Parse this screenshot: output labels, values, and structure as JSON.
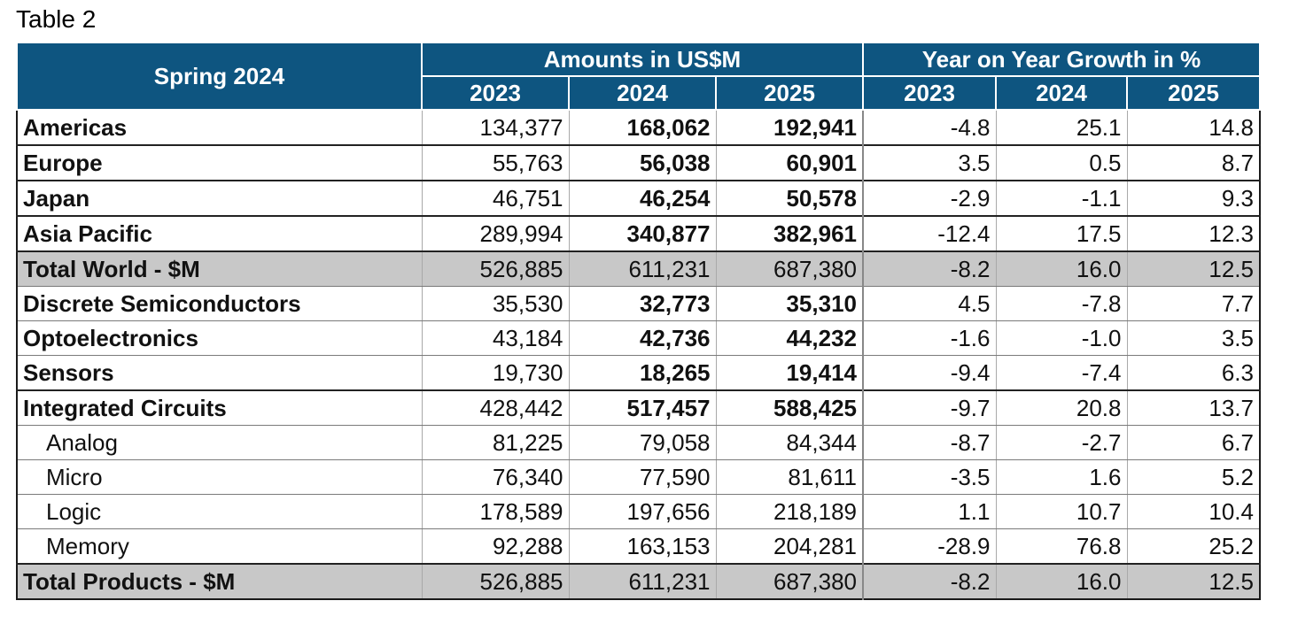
{
  "caption": "Table 2",
  "header": {
    "corner": "Spring 2024",
    "amounts_group": "Amounts in US$M",
    "growth_group": "Year on Year Growth in %",
    "years": [
      "2023",
      "2024",
      "2025"
    ]
  },
  "rows": [
    {
      "label": "Americas",
      "style": "bold",
      "amounts": [
        "134,377",
        "168,062",
        "192,941"
      ],
      "growth": [
        "-4.8",
        "25.1",
        "14.8"
      ]
    },
    {
      "label": "Europe",
      "style": "bold",
      "amounts": [
        "55,763",
        "56,038",
        "60,901"
      ],
      "growth": [
        "3.5",
        "0.5",
        "8.7"
      ]
    },
    {
      "label": "Japan",
      "style": "bold",
      "amounts": [
        "46,751",
        "46,254",
        "50,578"
      ],
      "growth": [
        "-2.9",
        "-1.1",
        "9.3"
      ]
    },
    {
      "label": "Asia Pacific",
      "style": "bold",
      "amounts": [
        "289,994",
        "340,877",
        "382,961"
      ],
      "growth": [
        "-12.4",
        "17.5",
        "12.3"
      ]
    },
    {
      "label": "Total World - $M",
      "style": "total",
      "amounts": [
        "526,885",
        "611,231",
        "687,380"
      ],
      "growth": [
        "-8.2",
        "16.0",
        "12.5"
      ]
    },
    {
      "label": "Discrete Semiconductors",
      "style": "bold",
      "amounts": [
        "35,530",
        "32,773",
        "35,310"
      ],
      "growth": [
        "4.5",
        "-7.8",
        "7.7"
      ]
    },
    {
      "label": "Optoelectronics",
      "style": "bold",
      "amounts": [
        "43,184",
        "42,736",
        "44,232"
      ],
      "growth": [
        "-1.6",
        "-1.0",
        "3.5"
      ]
    },
    {
      "label": "Sensors",
      "style": "bold",
      "amounts": [
        "19,730",
        "18,265",
        "19,414"
      ],
      "growth": [
        "-9.4",
        "-7.4",
        "6.3"
      ]
    },
    {
      "label": "Integrated Circuits",
      "style": "bold",
      "amounts": [
        "428,442",
        "517,457",
        "588,425"
      ],
      "growth": [
        "-9.7",
        "20.8",
        "13.7"
      ]
    },
    {
      "label": "Analog",
      "style": "sub",
      "amounts": [
        "81,225",
        "79,058",
        "84,344"
      ],
      "growth": [
        "-8.7",
        "-2.7",
        "6.7"
      ]
    },
    {
      "label": "Micro",
      "style": "sub",
      "amounts": [
        "76,340",
        "77,590",
        "81,611"
      ],
      "growth": [
        "-3.5",
        "1.6",
        "5.2"
      ]
    },
    {
      "label": "Logic",
      "style": "sub",
      "amounts": [
        "178,589",
        "197,656",
        "218,189"
      ],
      "growth": [
        "1.1",
        "10.7",
        "10.4"
      ]
    },
    {
      "label": "Memory",
      "style": "sub",
      "amounts": [
        "92,288",
        "163,153",
        "204,281"
      ],
      "growth": [
        "-28.9",
        "76.8",
        "25.2"
      ]
    },
    {
      "label": "Total Products - $M",
      "style": "total",
      "amounts": [
        "526,885",
        "611,231",
        "687,380"
      ],
      "growth": [
        "-8.2",
        "16.0",
        "12.5"
      ]
    }
  ],
  "colors": {
    "header_bg": "#0e5580",
    "header_text": "#ffffff",
    "total_row_bg": "#c8c8c8",
    "prior_year_text": "#6e6e6e"
  }
}
